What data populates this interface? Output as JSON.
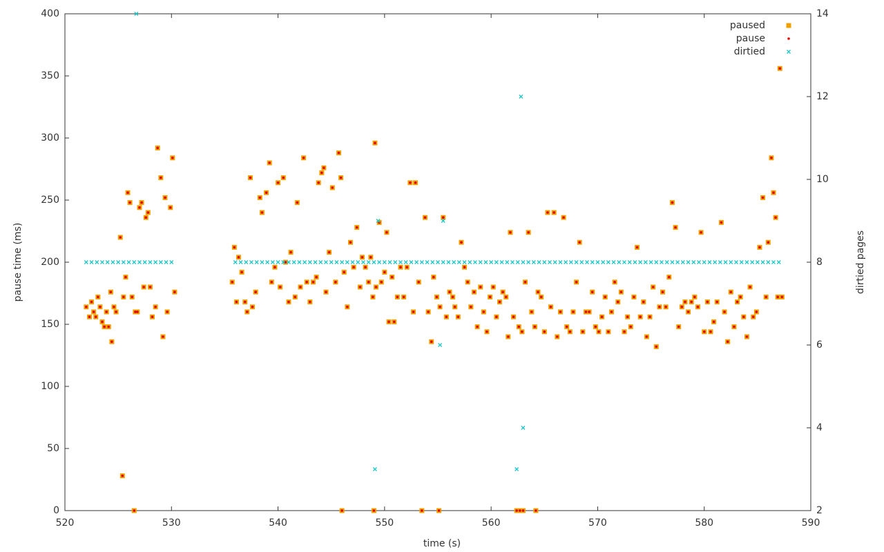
{
  "chart_data": {
    "type": "scatter",
    "xlabel": "time (s)",
    "ylabel": "pause time (ms)",
    "y2label": "dirtied pages",
    "xlim": [
      520,
      590
    ],
    "xticks": [
      520,
      530,
      540,
      550,
      560,
      570,
      580,
      590
    ],
    "ylim": [
      0,
      400
    ],
    "yticks": [
      0,
      50,
      100,
      150,
      200,
      250,
      300,
      350,
      400
    ],
    "y2lim": [
      2,
      14
    ],
    "y2ticks": [
      2,
      4,
      6,
      8,
      10,
      12,
      14
    ],
    "grid": false,
    "legend": "top-right",
    "series": [
      {
        "name": "paused",
        "color": "#f0a000",
        "marker": "square",
        "x": [
          522,
          522.3,
          522.5,
          522.7,
          522.9,
          523.1,
          523.3,
          523.5,
          523.7,
          523.9,
          524.1,
          524.3,
          524.4,
          524.6,
          524.8,
          525.2,
          525.4,
          525.5,
          525.7,
          525.9,
          526.1,
          526.3,
          526.5,
          526.6,
          526.8,
          527,
          527.2,
          527.4,
          527.6,
          527.8,
          528,
          528.2,
          528.5,
          528.7,
          529,
          529.2,
          529.4,
          529.6,
          529.9,
          530.1,
          530.3,
          535.7,
          535.9,
          536.1,
          536.3,
          536.6,
          536.9,
          537.1,
          537.4,
          537.6,
          537.9,
          538.3,
          538.5,
          538.9,
          539.2,
          539.4,
          539.7,
          540,
          540.2,
          540.5,
          540.7,
          541,
          541.2,
          541.6,
          541.8,
          542.1,
          542.4,
          542.7,
          543,
          543.3,
          543.6,
          543.8,
          544.1,
          544.3,
          544.5,
          544.8,
          545.1,
          545.4,
          545.7,
          545.9,
          546.2,
          546.5,
          546.8,
          547.1,
          547.4,
          547.7,
          547.9,
          548.2,
          548.5,
          548.7,
          548.9,
          549.1,
          549.2,
          549.5,
          549.7,
          550,
          550.2,
          550.4,
          550.7,
          550.9,
          551.2,
          551.5,
          551.8,
          552.1,
          552.4,
          552.7,
          552.9,
          553.2,
          553.5,
          553.8,
          554.1,
          554.4,
          554.6,
          554.9,
          555.2,
          555.5,
          555.8,
          556.1,
          556.4,
          556.6,
          556.9,
          557.2,
          557.5,
          557.8,
          558.1,
          558.4,
          558.7,
          559,
          559.3,
          559.6,
          559.9,
          560.2,
          560.5,
          560.8,
          561.1,
          561.4,
          561.6,
          561.8,
          562.1,
          562.4,
          562.6,
          562.9,
          563.2,
          563.5,
          563.8,
          564.1,
          564.4,
          564.7,
          565,
          565.3,
          565.6,
          565.9,
          566.2,
          566.5,
          566.8,
          567.1,
          567.4,
          567.7,
          568,
          568.3,
          568.6,
          568.9,
          569.2,
          569.5,
          569.8,
          570.1,
          570.4,
          570.7,
          571,
          571.3,
          571.6,
          571.9,
          572.2,
          572.5,
          572.8,
          573.1,
          573.4,
          573.7,
          574,
          574.3,
          574.6,
          574.9,
          575.2,
          575.5,
          575.8,
          576.1,
          576.4,
          576.7,
          577,
          577.3,
          577.6,
          577.9,
          578.2,
          578.5,
          578.8,
          579.1,
          579.4,
          579.7,
          580,
          580.3,
          580.6,
          580.9,
          581.2,
          581.6,
          581.9,
          582.2,
          582.5,
          582.8,
          583.1,
          583.4,
          583.7,
          584,
          584.3,
          584.6,
          584.9,
          585.2,
          585.5,
          585.8,
          586,
          586.3,
          586.5,
          586.7,
          586.9,
          587.1,
          587.3,
          546,
          549,
          555.1,
          562.7,
          563,
          564.2
        ],
        "values": [
          164,
          156,
          168,
          160,
          156,
          172,
          164,
          152,
          148,
          160,
          148,
          176,
          136,
          164,
          160,
          220,
          28,
          172,
          188,
          256,
          248,
          172,
          0,
          160,
          160,
          244,
          248,
          180,
          236,
          240,
          180,
          156,
          164,
          292,
          268,
          140,
          252,
          160,
          244,
          284,
          176,
          184,
          212,
          168,
          204,
          192,
          168,
          160,
          268,
          164,
          176,
          252,
          240,
          256,
          280,
          184,
          196,
          264,
          180,
          268,
          200,
          168,
          208,
          172,
          248,
          180,
          284,
          184,
          168,
          184,
          188,
          264,
          272,
          276,
          176,
          208,
          260,
          184,
          288,
          268,
          192,
          164,
          216,
          196,
          228,
          180,
          204,
          196,
          184,
          204,
          172,
          296,
          180,
          232,
          184,
          192,
          224,
          152,
          188,
          152,
          172,
          196,
          172,
          196,
          264,
          160,
          264,
          184,
          0,
          236,
          160,
          136,
          188,
          172,
          164,
          236,
          156,
          176,
          172,
          164,
          156,
          216,
          196,
          184,
          164,
          176,
          148,
          180,
          160,
          144,
          172,
          180,
          156,
          168,
          176,
          172,
          140,
          224,
          156,
          0,
          148,
          144,
          184,
          224,
          160,
          148,
          176,
          172,
          144,
          240,
          164,
          240,
          140,
          160,
          236,
          148,
          144,
          160,
          184,
          216,
          144,
          160,
          160,
          176,
          148,
          144,
          156,
          172,
          144,
          160,
          184,
          168,
          176,
          144,
          156,
          148,
          172,
          212,
          156,
          168,
          140,
          156,
          180,
          132,
          164,
          176,
          164,
          188,
          248,
          228,
          148,
          164,
          168,
          160,
          168,
          172,
          164,
          224,
          144,
          168,
          144,
          152,
          168,
          232,
          160,
          136,
          176,
          148,
          168,
          172,
          156,
          140,
          180,
          156,
          160,
          212,
          252,
          172,
          216,
          284,
          256,
          236,
          172,
          356,
          172,
          0,
          0,
          0,
          0,
          0,
          0
        ]
      },
      {
        "name": "pause",
        "color": "#e00000",
        "marker": "dot",
        "x": [
          522,
          522.3,
          522.5,
          522.7,
          522.9,
          523.1,
          523.3,
          523.5,
          523.7,
          523.9,
          524.1,
          524.3,
          524.4,
          524.6,
          524.8,
          525.2,
          525.4,
          525.5,
          525.7,
          525.9,
          526.1,
          526.3,
          526.5,
          526.6,
          526.8,
          527,
          527.2,
          527.4,
          527.6,
          527.8,
          528,
          528.2,
          528.5,
          528.7,
          529,
          529.2,
          529.4,
          529.6,
          529.9,
          530.1,
          530.3,
          535.7,
          535.9,
          536.1,
          536.3,
          536.6,
          536.9,
          537.1,
          537.4,
          537.6,
          537.9,
          538.3,
          538.5,
          538.9,
          539.2,
          539.4,
          539.7,
          540,
          540.2,
          540.5,
          540.7,
          541,
          541.2,
          541.6,
          541.8,
          542.1,
          542.4,
          542.7,
          543,
          543.3,
          543.6,
          543.8,
          544.1,
          544.3,
          544.5,
          544.8,
          545.1,
          545.4,
          545.7,
          545.9,
          546.2,
          546.5,
          546.8,
          547.1,
          547.4,
          547.7,
          547.9,
          548.2,
          548.5,
          548.7,
          548.9,
          549.1,
          549.2,
          549.5,
          549.7,
          550,
          550.2,
          550.4,
          550.7,
          550.9,
          551.2,
          551.5,
          551.8,
          552.1,
          552.4,
          552.7,
          552.9,
          553.2,
          553.5,
          553.8,
          554.1,
          554.4,
          554.6,
          554.9,
          555.2,
          555.5,
          555.8,
          556.1,
          556.4,
          556.6,
          556.9,
          557.2,
          557.5,
          557.8,
          558.1,
          558.4,
          558.7,
          559,
          559.3,
          559.6,
          559.9,
          560.2,
          560.5,
          560.8,
          561.1,
          561.4,
          561.6,
          561.8,
          562.1,
          562.4,
          562.6,
          562.9,
          563.2,
          563.5,
          563.8,
          564.1,
          564.4,
          564.7,
          565,
          565.3,
          565.6,
          565.9,
          566.2,
          566.5,
          566.8,
          567.1,
          567.4,
          567.7,
          568,
          568.3,
          568.6,
          568.9,
          569.2,
          569.5,
          569.8,
          570.1,
          570.4,
          570.7,
          571,
          571.3,
          571.6,
          571.9,
          572.2,
          572.5,
          572.8,
          573.1,
          573.4,
          573.7,
          574,
          574.3,
          574.6,
          574.9,
          575.2,
          575.5,
          575.8,
          576.1,
          576.4,
          576.7,
          577,
          577.3,
          577.6,
          577.9,
          578.2,
          578.5,
          578.8,
          579.1,
          579.4,
          579.7,
          580,
          580.3,
          580.6,
          580.9,
          581.2,
          581.6,
          581.9,
          582.2,
          582.5,
          582.8,
          583.1,
          583.4,
          583.7,
          584,
          584.3,
          584.6,
          584.9,
          585.2,
          585.5,
          585.8,
          586,
          586.3,
          586.5,
          586.7,
          586.9,
          587.1,
          587.3,
          546,
          549,
          555.1,
          562.7,
          563,
          564.2
        ],
        "values": [
          164,
          156,
          168,
          160,
          156,
          172,
          164,
          152,
          148,
          160,
          148,
          176,
          136,
          164,
          160,
          220,
          28,
          172,
          188,
          256,
          248,
          172,
          0,
          160,
          160,
          244,
          248,
          180,
          236,
          240,
          180,
          156,
          164,
          292,
          268,
          140,
          252,
          160,
          244,
          284,
          176,
          184,
          212,
          168,
          204,
          192,
          168,
          160,
          268,
          164,
          176,
          252,
          240,
          256,
          280,
          184,
          196,
          264,
          180,
          268,
          200,
          168,
          208,
          172,
          248,
          180,
          284,
          184,
          168,
          184,
          188,
          264,
          272,
          276,
          176,
          208,
          260,
          184,
          288,
          268,
          192,
          164,
          216,
          196,
          228,
          180,
          204,
          196,
          184,
          204,
          172,
          296,
          180,
          232,
          184,
          192,
          224,
          152,
          188,
          152,
          172,
          196,
          172,
          196,
          264,
          160,
          264,
          184,
          0,
          236,
          160,
          136,
          188,
          172,
          164,
          236,
          156,
          176,
          172,
          164,
          156,
          216,
          196,
          184,
          164,
          176,
          148,
          180,
          160,
          144,
          172,
          180,
          156,
          168,
          176,
          172,
          140,
          224,
          156,
          0,
          148,
          144,
          184,
          224,
          160,
          148,
          176,
          172,
          144,
          240,
          164,
          240,
          140,
          160,
          236,
          148,
          144,
          160,
          184,
          216,
          144,
          160,
          160,
          176,
          148,
          144,
          156,
          172,
          144,
          160,
          184,
          168,
          176,
          144,
          156,
          148,
          172,
          212,
          156,
          168,
          140,
          156,
          180,
          132,
          164,
          176,
          164,
          188,
          248,
          228,
          148,
          164,
          168,
          160,
          168,
          172,
          164,
          224,
          144,
          168,
          144,
          152,
          168,
          232,
          160,
          136,
          176,
          148,
          168,
          172,
          156,
          140,
          180,
          156,
          160,
          212,
          252,
          172,
          216,
          284,
          256,
          236,
          172,
          356,
          172,
          0,
          0,
          0,
          0,
          0,
          0
        ]
      },
      {
        "name": "dirtied",
        "color": "#20c8c8",
        "marker": "cross",
        "axis": "y2",
        "x": [
          522,
          522.5,
          523,
          523.5,
          524,
          524.5,
          525,
          525.5,
          526,
          526.5,
          527,
          527.5,
          528,
          528.5,
          529,
          529.5,
          530,
          536,
          536.5,
          537,
          537.5,
          538,
          538.5,
          539,
          539.5,
          540,
          540.5,
          541,
          541.5,
          542,
          542.5,
          543,
          543.5,
          544,
          544.5,
          545,
          545.5,
          546,
          546.5,
          547,
          547.5,
          548,
          548.5,
          549,
          549.5,
          550,
          550.5,
          551,
          551.5,
          552,
          552.5,
          553,
          553.5,
          554,
          554.5,
          555,
          555.5,
          556,
          556.5,
          557,
          557.5,
          558,
          558.5,
          559,
          559.5,
          560,
          560.5,
          561,
          561.5,
          562,
          562.5,
          563,
          563.5,
          564,
          564.5,
          565,
          565.5,
          566,
          566.5,
          567,
          567.5,
          568,
          568.5,
          569,
          569.5,
          570,
          570.5,
          571,
          571.5,
          572,
          572.5,
          573,
          573.5,
          574,
          574.5,
          575,
          575.5,
          576,
          576.5,
          577,
          577.5,
          578,
          578.5,
          579,
          579.5,
          580,
          580.5,
          581,
          581.5,
          582,
          582.5,
          583,
          583.5,
          584,
          584.5,
          585,
          585.5,
          586,
          586.5,
          587,
          526.7,
          549.1,
          549.4,
          555.2,
          555.5,
          562.4,
          562.8,
          563
        ],
        "values": [
          8,
          8,
          8,
          8,
          8,
          8,
          8,
          8,
          8,
          8,
          8,
          8,
          8,
          8,
          8,
          8,
          8,
          8,
          8,
          8,
          8,
          8,
          8,
          8,
          8,
          8,
          8,
          8,
          8,
          8,
          8,
          8,
          8,
          8,
          8,
          8,
          8,
          8,
          8,
          8,
          8,
          8,
          8,
          8,
          8,
          8,
          8,
          8,
          8,
          8,
          8,
          8,
          8,
          8,
          8,
          8,
          8,
          8,
          8,
          8,
          8,
          8,
          8,
          8,
          8,
          8,
          8,
          8,
          8,
          8,
          8,
          8,
          8,
          8,
          8,
          8,
          8,
          8,
          8,
          8,
          8,
          8,
          8,
          8,
          8,
          8,
          8,
          8,
          8,
          8,
          8,
          8,
          8,
          8,
          8,
          8,
          8,
          8,
          8,
          8,
          8,
          8,
          8,
          8,
          8,
          8,
          8,
          8,
          8,
          8,
          8,
          8,
          8,
          8,
          8,
          8,
          8,
          8,
          8,
          8,
          14,
          3,
          9,
          6,
          9,
          3,
          12,
          4
        ]
      }
    ]
  }
}
